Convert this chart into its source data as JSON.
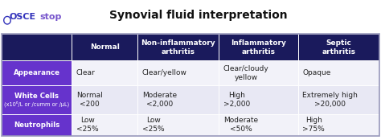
{
  "title": "Synovial fluid interpretation",
  "logo_osce": "OSCEstop",
  "logo_color_osce": "#3333bb",
  "logo_color_stop": "#7755cc",
  "bg_color": "#ffffff",
  "header_bg": "#1a1a5c",
  "header_text_color": "#ffffff",
  "row_label_bg": "#6633cc",
  "row_label_text_color": "#ffffff",
  "row_data_bg_light": "#e8e8f4",
  "row_data_bg_lighter": "#f2f2f9",
  "table_border_color": "#9999bb",
  "col_headers": [
    "Normal",
    "Non-inflammatory\narthritis",
    "Inflammatory\narthritis",
    "Septic\narthritis"
  ],
  "row_labels": [
    "Appearance",
    "White Cells\n(x10⁶/L or /cumm or /µL)",
    "Neutrophils"
  ],
  "data": [
    [
      "Clear",
      "Clear/yellow",
      "Clear/cloudy\nyellow",
      "Opaque"
    ],
    [
      "Normal\n<200",
      "Moderate\n<2,000",
      "High\n>2,000",
      "Extremely high\n>20,000"
    ],
    [
      "Low\n<25%",
      "Low\n<25%",
      "Moderate\n<50%",
      "High\n>75%"
    ]
  ],
  "title_fontsize": 10,
  "logo_fontsize": 8,
  "header_fontsize": 6.5,
  "row_label_fontsize": 6.2,
  "row_label_sub_fontsize": 4.8,
  "data_fontsize": 6.5
}
